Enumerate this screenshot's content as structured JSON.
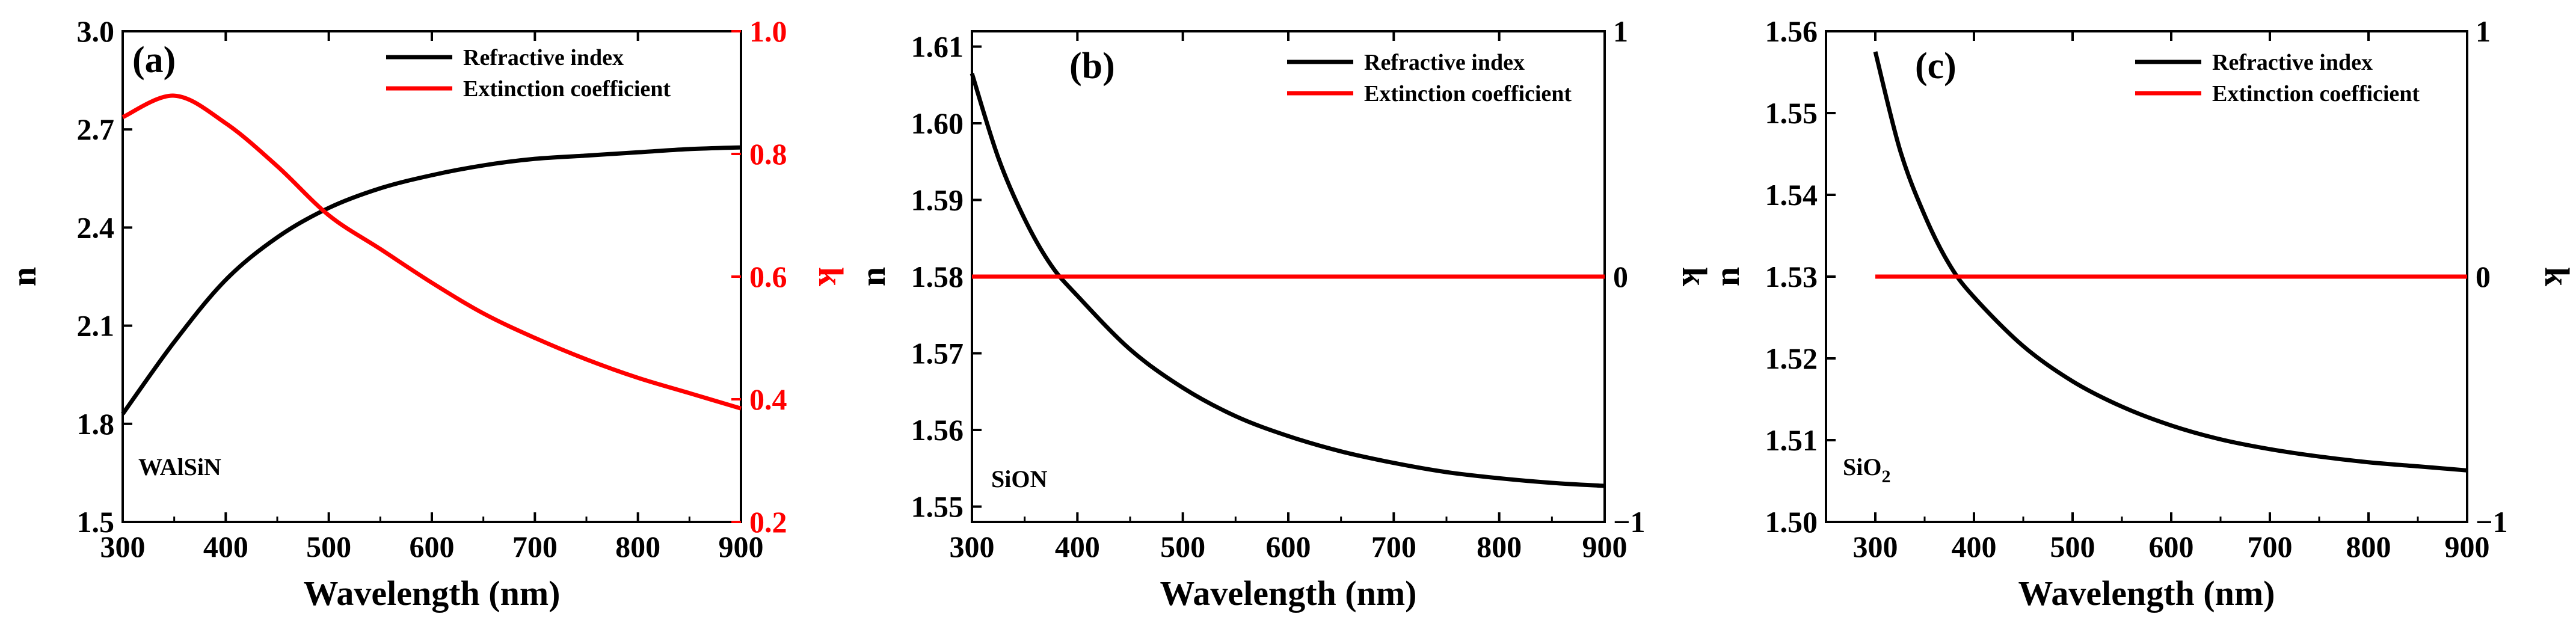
{
  "colors": {
    "n_series": "#000000",
    "k_series": "#ff0000",
    "axis": "#000000",
    "k_axis_a": "#ff0000"
  },
  "chart_data": [
    {
      "type": "line",
      "panel_label": "(a)",
      "material": "WAlSiN",
      "xlabel": "Wavelength (nm)",
      "ylabel_left": "n",
      "ylabel_right": "k",
      "xlim": [
        300,
        900
      ],
      "ylim_left": [
        1.5,
        3.0
      ],
      "ylim_right": [
        0.2,
        1.0
      ],
      "x_ticks": [
        "300",
        "400",
        "500",
        "600",
        "700",
        "800",
        "900"
      ],
      "left_ticks": [
        "1.5",
        "1.8",
        "2.1",
        "2.4",
        "2.7",
        "3.0"
      ],
      "right_ticks": [
        "0.2",
        "0.4",
        "0.6",
        "0.8",
        "1.0"
      ],
      "legend": [
        "Refractive index",
        "Extinction coefficient"
      ],
      "x": [
        300,
        350,
        400,
        450,
        500,
        550,
        600,
        650,
        700,
        750,
        800,
        850,
        900
      ],
      "series": [
        {
          "name": "Refractive index",
          "axis": "left",
          "values": [
            1.83,
            2.05,
            2.24,
            2.37,
            2.46,
            2.52,
            2.56,
            2.59,
            2.61,
            2.62,
            2.63,
            2.64,
            2.645
          ]
        },
        {
          "name": "Extinction coefficient",
          "axis": "right",
          "values": [
            0.86,
            0.895,
            0.85,
            0.78,
            0.7,
            0.645,
            0.59,
            0.54,
            0.5,
            0.465,
            0.435,
            0.41,
            0.385
          ]
        }
      ]
    },
    {
      "type": "line",
      "panel_label": "(b)",
      "material": "SiON",
      "xlabel": "Wavelength (nm)",
      "ylabel_left": "n",
      "ylabel_right": "k",
      "xlim": [
        300,
        900
      ],
      "ylim_left": [
        1.548,
        1.612
      ],
      "ylim_right": [
        -1,
        1
      ],
      "x_ticks": [
        "300",
        "400",
        "500",
        "600",
        "700",
        "800",
        "900"
      ],
      "left_ticks": [
        "1.55",
        "1.56",
        "1.57",
        "1.58",
        "1.59",
        "1.60",
        "1.61"
      ],
      "right_ticks": [
        "−1",
        "0",
        "1"
      ],
      "legend": [
        "Refractive index",
        "Extinction coefficient"
      ],
      "x": [
        300,
        325,
        350,
        375,
        400,
        450,
        500,
        550,
        600,
        650,
        700,
        750,
        800,
        850,
        900
      ],
      "series": [
        {
          "name": "Refractive index",
          "axis": "left",
          "values": [
            1.6065,
            1.5955,
            1.5875,
            1.5815,
            1.5775,
            1.5705,
            1.5655,
            1.5618,
            1.5592,
            1.5572,
            1.5557,
            1.5545,
            1.5537,
            1.5531,
            1.5527
          ]
        },
        {
          "name": "Extinction coefficient",
          "axis": "right",
          "values": [
            0,
            0,
            0,
            0,
            0,
            0,
            0,
            0,
            0,
            0,
            0,
            0,
            0,
            0,
            0
          ]
        }
      ]
    },
    {
      "type": "line",
      "panel_label": "(c)",
      "material": "SiO",
      "material_sub": "2",
      "xlabel": "Wavelength (nm)",
      "ylabel_left": "n",
      "ylabel_right": "k",
      "xlim": [
        250,
        900
      ],
      "ylim_left": [
        1.5,
        1.56
      ],
      "ylim_right": [
        -1,
        1
      ],
      "x_ticks": [
        "300",
        "400",
        "500",
        "600",
        "700",
        "800",
        "900"
      ],
      "left_ticks": [
        "1.50",
        "1.51",
        "1.52",
        "1.53",
        "1.54",
        "1.55",
        "1.56"
      ],
      "right_ticks": [
        "−1",
        "0",
        "1"
      ],
      "legend": [
        "Refractive index",
        "Extinction coefficient"
      ],
      "x": [
        300,
        325,
        350,
        375,
        400,
        450,
        500,
        550,
        600,
        650,
        700,
        750,
        800,
        850,
        900
      ],
      "series": [
        {
          "name": "Refractive index",
          "axis": "left",
          "values": [
            1.5575,
            1.5455,
            1.5375,
            1.5315,
            1.5275,
            1.5215,
            1.5172,
            1.5141,
            1.5118,
            1.5101,
            1.5089,
            1.508,
            1.5073,
            1.5068,
            1.5063
          ]
        },
        {
          "name": "Extinction coefficient",
          "axis": "right",
          "values": [
            0,
            0,
            0,
            0,
            0,
            0,
            0,
            0,
            0,
            0,
            0,
            0,
            0,
            0,
            0
          ]
        }
      ]
    }
  ]
}
